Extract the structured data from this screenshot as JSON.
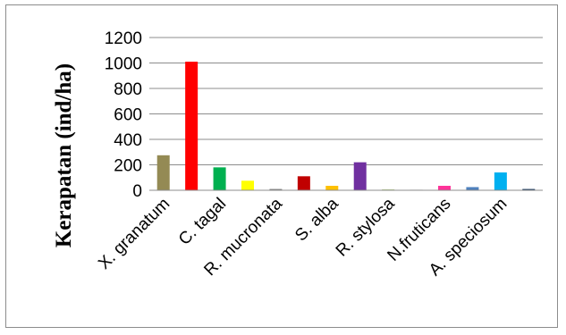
{
  "chart_data": {
    "type": "bar",
    "title": "",
    "xlabel": "",
    "ylabel": "Kerapatan (ind/ha)",
    "ylim": [
      0,
      1200
    ],
    "yticks": [
      0,
      200,
      400,
      600,
      800,
      1000,
      1200
    ],
    "grid": true,
    "legend": "none",
    "categories": [
      "X. granatum",
      "",
      "C. tagal",
      "",
      "R. mucronata",
      "",
      "S. alba",
      "",
      "R. stylosa",
      "",
      "N.fruticans",
      "",
      "A. speciosum",
      ""
    ],
    "values": [
      275,
      1010,
      180,
      75,
      10,
      110,
      35,
      220,
      8,
      5,
      35,
      25,
      140,
      10
    ],
    "colors": [
      "#948a54",
      "#ff0000",
      "#00b050",
      "#ffff00",
      "#7f7f7f",
      "#c00000",
      "#ffc000",
      "#7030a0",
      "#c4d79b",
      "#d9d9d9",
      "#ff3399",
      "#4f81bd",
      "#00b0f0",
      "#17375e"
    ]
  }
}
